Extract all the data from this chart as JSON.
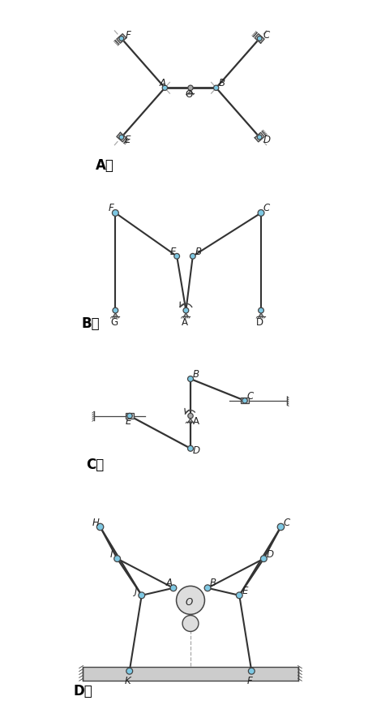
{
  "bg_color": "#ffffff",
  "joint_color": "#7ec8e3",
  "joint_edge": "#444444",
  "link_color": "#333333",
  "ground_color": "#aaaaaa",
  "slider_color": "#cccccc",
  "label_color": "#222222",
  "label_fontsize": 8.5,
  "section_labels": [
    "A、",
    "B、",
    "C、",
    "D、"
  ],
  "section_label_fontsize": 12
}
